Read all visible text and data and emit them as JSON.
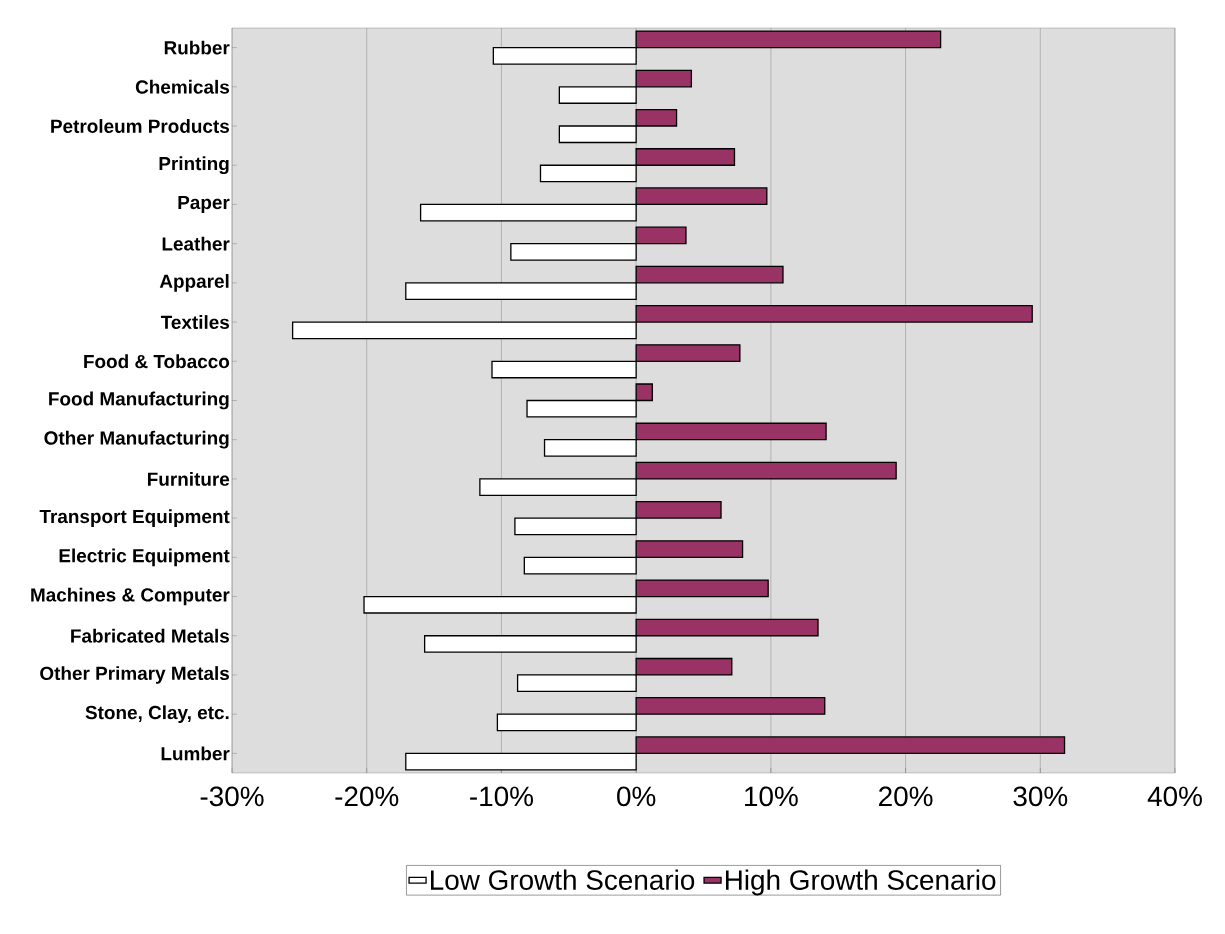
{
  "chart_data": {
    "type": "bar",
    "orientation": "horizontal",
    "categories": [
      "Rubber",
      "Chemicals",
      "Petroleum Products",
      "Printing",
      "Paper",
      "Leather",
      "Apparel",
      "Textiles",
      "Food & Tobacco",
      "Food Manufacturing",
      "Other Manufacturing",
      "Furniture",
      "Transport Equipment",
      "Electric Equipment",
      "Machines & Computer",
      "Fabricated Metals",
      "Other Primary Metals",
      "Stone, Clay, etc.",
      "Lumber"
    ],
    "series": [
      {
        "name": "Low Growth Scenario",
        "color": "#ffffff",
        "values": [
          -10.6,
          -5.7,
          -5.7,
          -7.1,
          -16.0,
          -9.3,
          -17.1,
          -25.5,
          -10.7,
          -8.1,
          -6.8,
          -11.6,
          -9.0,
          -8.3,
          -20.2,
          -15.7,
          -8.8,
          -10.3,
          -17.1
        ]
      },
      {
        "name": "High Growth Scenario",
        "color": "#993366",
        "values": [
          22.6,
          4.1,
          3.0,
          7.3,
          9.7,
          3.7,
          10.9,
          29.4,
          7.7,
          1.2,
          14.1,
          19.3,
          6.3,
          7.9,
          9.8,
          13.5,
          7.1,
          14.0,
          31.8
        ]
      }
    ],
    "xlim": [
      -30,
      40
    ],
    "xticks": [
      {
        "value": -30,
        "label": "-30%"
      },
      {
        "value": -20,
        "label": "-20%"
      },
      {
        "value": -10,
        "label": "-10%"
      },
      {
        "value": 0,
        "label": "0%"
      },
      {
        "value": 10,
        "label": "10%"
      },
      {
        "value": 20,
        "label": "20%"
      },
      {
        "value": 30,
        "label": "30%"
      },
      {
        "value": 40,
        "label": "40%"
      }
    ],
    "grid": "x",
    "legend": "bottom"
  }
}
